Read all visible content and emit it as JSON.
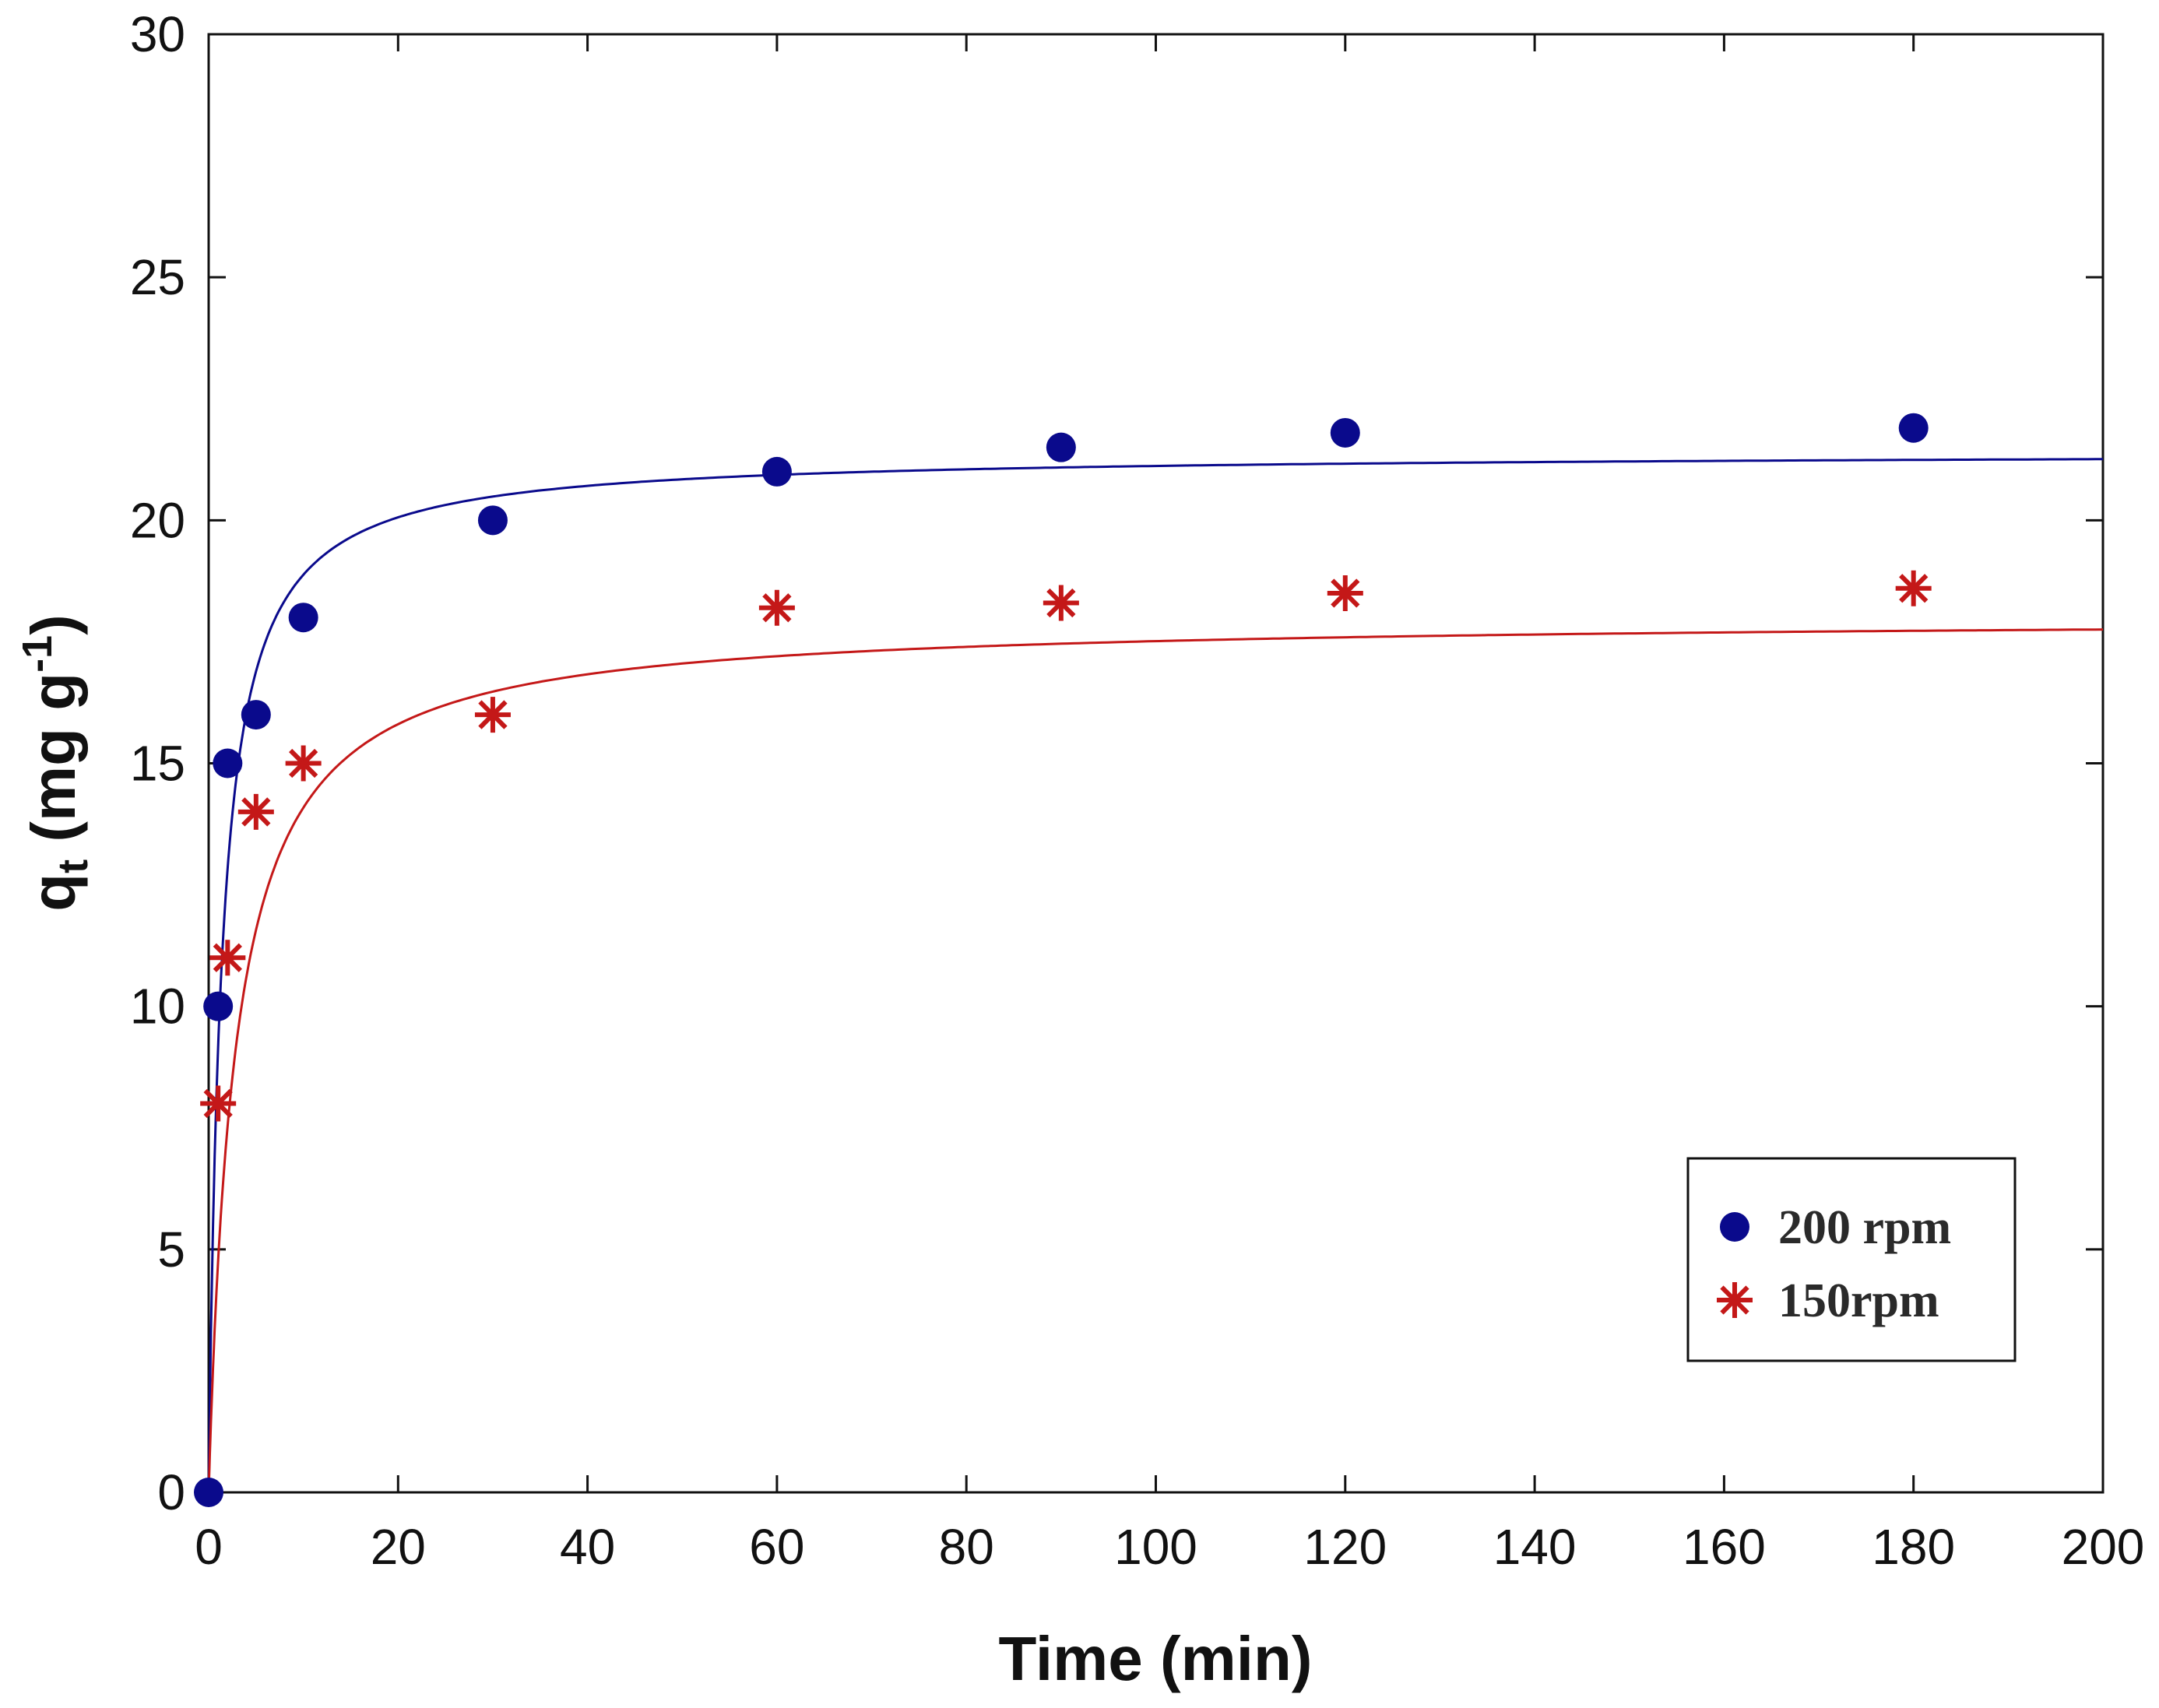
{
  "chart_data": {
    "type": "scatter",
    "title": "",
    "xlabel": "Time (min)",
    "ylabel": {
      "main": "q",
      "subscript": "t",
      "unit_prefix": " (mg g",
      "unit_sup": "-1",
      "unit_suffix": ")"
    },
    "xlim": [
      0,
      200
    ],
    "ylim": [
      0,
      30
    ],
    "xticks": [
      "0",
      "20",
      "40",
      "60",
      "80",
      "100",
      "120",
      "140",
      "160",
      "180",
      "200"
    ],
    "yticks": [
      "0",
      "5",
      "10",
      "15",
      "20",
      "25",
      "30"
    ],
    "grid": false,
    "legend_position": "bottom-right",
    "series": [
      {
        "name": "200 rpm",
        "marker": "circle",
        "color": "#0a0a8c",
        "points": [
          {
            "x": 0,
            "y": 0
          },
          {
            "x": 1,
            "y": 10
          },
          {
            "x": 2,
            "y": 15
          },
          {
            "x": 5,
            "y": 16
          },
          {
            "x": 10,
            "y": 18
          },
          {
            "x": 30,
            "y": 20
          },
          {
            "x": 60,
            "y": 21
          },
          {
            "x": 90,
            "y": 21.5
          },
          {
            "x": 120,
            "y": 21.8
          },
          {
            "x": 180,
            "y": 21.9
          }
        ],
        "fit": {
          "model": "pseudo-second-order",
          "qe": 21.4,
          "k": 0.035
        }
      },
      {
        "name": "150rpm",
        "marker": "asterisk",
        "color": "#c41818",
        "points": [
          {
            "x": 1,
            "y": 8
          },
          {
            "x": 2,
            "y": 11
          },
          {
            "x": 5,
            "y": 14
          },
          {
            "x": 10,
            "y": 15
          },
          {
            "x": 30,
            "y": 16
          },
          {
            "x": 60,
            "y": 18.2
          },
          {
            "x": 90,
            "y": 18.3
          },
          {
            "x": 120,
            "y": 18.5
          },
          {
            "x": 180,
            "y": 18.6
          }
        ],
        "fit": {
          "model": "pseudo-second-order",
          "qe": 18.0,
          "k": 0.02
        }
      }
    ]
  }
}
